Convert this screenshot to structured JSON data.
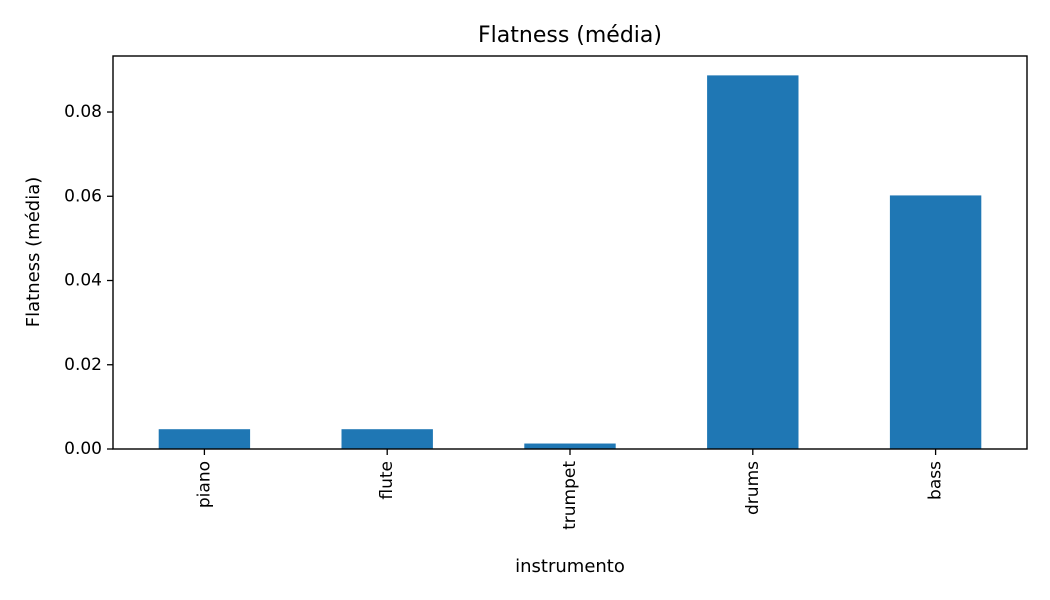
{
  "chart_data": {
    "type": "bar",
    "title": "Flatness (média)",
    "xlabel": "instrumento",
    "ylabel": "Flatness (média)",
    "categories": [
      "piano",
      "flute",
      "trumpet",
      "drums",
      "bass"
    ],
    "values": [
      0.0047,
      0.0047,
      0.0013,
      0.0887,
      0.0602
    ],
    "ylim": [
      0,
      0.0933
    ],
    "yticks": [
      0.0,
      0.02,
      0.04,
      0.06,
      0.08
    ],
    "ytick_labels": [
      "0.00",
      "0.02",
      "0.04",
      "0.06",
      "0.08"
    ],
    "grid": false,
    "legend": "none",
    "colors": {
      "bar": "#1f77b4",
      "axis": "#000000",
      "background": "#ffffff"
    }
  }
}
